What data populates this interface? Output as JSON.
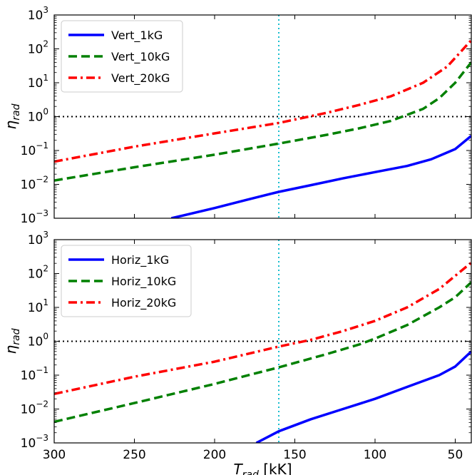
{
  "chart_data": [
    {
      "type": "line",
      "panel": "top",
      "ylabel_main": "η",
      "ylabel_sub": "rad",
      "xlabel": "",
      "xlim": [
        300,
        40
      ],
      "xscale": "linear",
      "x_reversed": true,
      "ylim": [
        0.001,
        1000
      ],
      "yscale": "log",
      "xticks": [
        "300",
        "250",
        "200",
        "150",
        "100",
        "50"
      ],
      "xtick_values": [
        300,
        250,
        200,
        150,
        100,
        50
      ],
      "show_xtick_labels": false,
      "yticks": [
        {
          "base": "10",
          "exp": "3",
          "value": 1000
        },
        {
          "base": "10",
          "exp": "2",
          "value": 100
        },
        {
          "base": "10",
          "exp": "1",
          "value": 10
        },
        {
          "base": "10",
          "exp": "0",
          "value": 1
        },
        {
          "base": "10",
          "exp": "−1",
          "value": 0.1
        },
        {
          "base": "10",
          "exp": "−2",
          "value": 0.01
        },
        {
          "base": "10",
          "exp": "−3",
          "value": 0.001
        }
      ],
      "hline": {
        "y": 1,
        "color": "#000000",
        "style": "dotted"
      },
      "vline": {
        "x": 160,
        "color": "#17becf",
        "style": "dotted"
      },
      "legend_placement": "upper-left",
      "grid": false,
      "series": [
        {
          "name": "Vert_1kG",
          "color": "#0000ff",
          "style": "solid",
          "x": [
            227,
            200,
            180,
            160,
            140,
            120,
            100,
            80,
            65,
            50,
            40
          ],
          "y": [
            0.001,
            0.002,
            0.0035,
            0.006,
            0.0095,
            0.015,
            0.023,
            0.035,
            0.055,
            0.11,
            0.27
          ]
        },
        {
          "name": "Vert_10kG",
          "color": "#008000",
          "style": "dashed",
          "x": [
            300,
            250,
            200,
            160,
            130,
            110,
            90,
            70,
            60,
            50,
            40
          ],
          "y": [
            0.013,
            0.032,
            0.075,
            0.16,
            0.29,
            0.45,
            0.75,
            1.7,
            3.5,
            10,
            40
          ]
        },
        {
          "name": "Vert_20kG",
          "color": "#ff0000",
          "style": "dashdot",
          "x": [
            300,
            250,
            200,
            160,
            130,
            110,
            90,
            70,
            55,
            40
          ],
          "y": [
            0.047,
            0.13,
            0.32,
            0.65,
            1.3,
            2.2,
            4,
            10,
            30,
            180
          ]
        }
      ]
    },
    {
      "type": "line",
      "panel": "bottom",
      "ylabel_main": "η",
      "ylabel_sub": "rad",
      "xlabel_main": "T",
      "xlabel_sub": "rad",
      "xlabel_unit": " [kK]",
      "xlim": [
        300,
        40
      ],
      "xscale": "linear",
      "x_reversed": true,
      "ylim": [
        0.001,
        1000
      ],
      "yscale": "log",
      "xticks": [
        "300",
        "250",
        "200",
        "150",
        "100",
        "50"
      ],
      "xtick_values": [
        300,
        250,
        200,
        150,
        100,
        50
      ],
      "show_xtick_labels": true,
      "yticks": [
        {
          "base": "10",
          "exp": "3",
          "value": 1000
        },
        {
          "base": "10",
          "exp": "2",
          "value": 100
        },
        {
          "base": "10",
          "exp": "1",
          "value": 10
        },
        {
          "base": "10",
          "exp": "0",
          "value": 1
        },
        {
          "base": "10",
          "exp": "−1",
          "value": 0.1
        },
        {
          "base": "10",
          "exp": "−2",
          "value": 0.01
        },
        {
          "base": "10",
          "exp": "−3",
          "value": 0.001
        }
      ],
      "hline": {
        "y": 1,
        "color": "#000000",
        "style": "dotted"
      },
      "vline": {
        "x": 160,
        "color": "#17becf",
        "style": "dotted"
      },
      "legend_placement": "upper-left",
      "grid": false,
      "series": [
        {
          "name": "Horiz_1kG",
          "color": "#0000ff",
          "style": "solid",
          "x": [
            174,
            160,
            140,
            120,
            100,
            80,
            60,
            50,
            40
          ],
          "y": [
            0.001,
            0.0022,
            0.005,
            0.01,
            0.02,
            0.045,
            0.1,
            0.18,
            0.5
          ]
        },
        {
          "name": "Horiz_10kG",
          "color": "#008000",
          "style": "dashed",
          "x": [
            300,
            250,
            200,
            160,
            130,
            110,
            100,
            80,
            60,
            50,
            40
          ],
          "y": [
            0.0042,
            0.015,
            0.055,
            0.17,
            0.42,
            0.8,
            1.2,
            3,
            10,
            20,
            55
          ]
        },
        {
          "name": "Horiz_20kG",
          "color": "#ff0000",
          "style": "dashdot",
          "x": [
            300,
            250,
            200,
            160,
            140,
            120,
            100,
            80,
            60,
            40
          ],
          "y": [
            0.028,
            0.09,
            0.25,
            0.7,
            1.1,
            2,
            4,
            10,
            35,
            210
          ]
        }
      ]
    }
  ]
}
